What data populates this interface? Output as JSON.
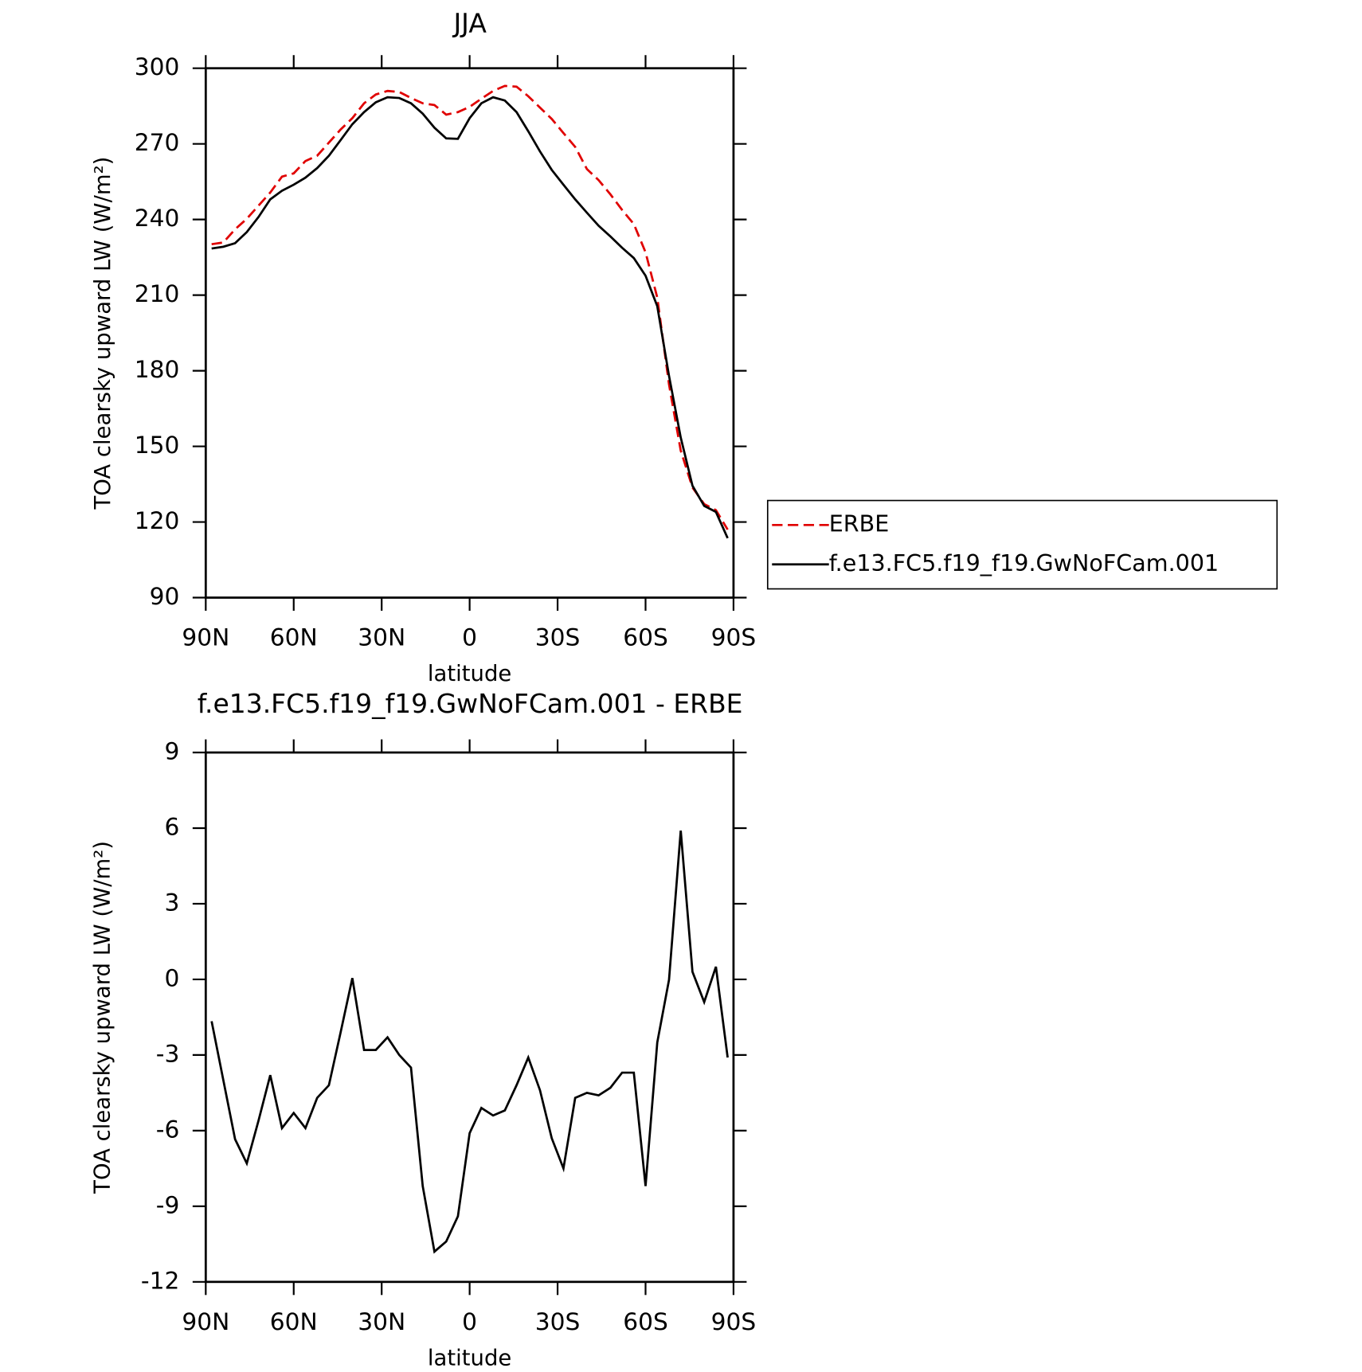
{
  "chart_data": [
    {
      "type": "line",
      "title": "JJA",
      "xlabel": "latitude",
      "ylabel": "TOA clearsky upward LW (W/m²)",
      "x": [
        88,
        84,
        80,
        76,
        72,
        68,
        64,
        60,
        56,
        52,
        48,
        44,
        40,
        36,
        32,
        28,
        24,
        20,
        16,
        12,
        8,
        4,
        0,
        -4,
        -8,
        -12,
        -16,
        -20,
        -24,
        -28,
        -32,
        -36,
        -40,
        -44,
        -48,
        -52,
        -56,
        -60,
        -64,
        -68,
        -72,
        -76,
        -80,
        -84,
        -88
      ],
      "series": [
        {
          "name": "ERBE",
          "color": "#e00000",
          "dash": true,
          "values": [
            230.2,
            230.9,
            236.1,
            240.3,
            245.5,
            250.7,
            257,
            258.3,
            263.2,
            265.3,
            270.5,
            275.7,
            280.2,
            286.1,
            289.6,
            291,
            290.6,
            288.2,
            286.1,
            285.4,
            281.6,
            282.6,
            284.7,
            287.9,
            291,
            293,
            292.7,
            288.9,
            284.4,
            279.9,
            274.3,
            268.8,
            260,
            255.6,
            250,
            243.8,
            238.2,
            227,
            209,
            174.6,
            148.3,
            133.7,
            127.1,
            124.7,
            117
          ]
        },
        {
          "name": "f.e13.FC5.f19_f19.GwNoFCam.001",
          "color": "#000000",
          "dash": false,
          "values": [
            228.5,
            229.2,
            230.6,
            235,
            241,
            248,
            251.4,
            253.8,
            256.6,
            260.4,
            265.3,
            271.5,
            277.8,
            282.6,
            286.5,
            288.5,
            288.2,
            286.1,
            282,
            276.4,
            272.2,
            272,
            280.2,
            286.1,
            288.5,
            287.2,
            282.6,
            275,
            267,
            259.7,
            253.8,
            248,
            242.7,
            237.5,
            233.3,
            228.8,
            224.7,
            217.7,
            205.6,
            178,
            153.5,
            134.4,
            126.4,
            124,
            113.6
          ]
        }
      ],
      "xlim": [
        90,
        -90
      ],
      "xticks": [
        {
          "value": 90,
          "label": "90N"
        },
        {
          "value": 60,
          "label": "60N"
        },
        {
          "value": 30,
          "label": "30N"
        },
        0,
        {
          "value": -30,
          "label": "30S"
        },
        {
          "value": -60,
          "label": "60S"
        },
        {
          "value": -90,
          "label": "90S"
        }
      ],
      "ylim": [
        90,
        300
      ],
      "yticks": [
        90,
        120,
        150,
        180,
        210,
        240,
        270,
        300
      ],
      "legend": "right"
    },
    {
      "type": "line",
      "title": "f.e13.FC5.f19_f19.GwNoFCam.001 - ERBE",
      "xlabel": "latitude",
      "ylabel": "TOA clearsky upward LW (W/m²)",
      "x": [
        88,
        84,
        80,
        76,
        72,
        68,
        64,
        60,
        56,
        52,
        48,
        44,
        40,
        36,
        32,
        28,
        24,
        20,
        16,
        12,
        8,
        4,
        0,
        -4,
        -8,
        -12,
        -16,
        -20,
        -24,
        -28,
        -32,
        -36,
        -40,
        -44,
        -48,
        -52,
        -56,
        -60,
        -64,
        -68,
        -72,
        -76,
        -80,
        -84,
        -88
      ],
      "series": [
        {
          "name": "f.e13.FC5.f19_f19.GwNoFCam.001 - ERBE",
          "color": "#000000",
          "dash": false,
          "values": [
            -1.66,
            -4,
            -6.34,
            -7.3,
            -5.6,
            -3.8,
            -5.9,
            -5.3,
            -5.9,
            -4.7,
            -4.2,
            -2.1,
            0.05,
            -2.8,
            -2.8,
            -2.3,
            -3,
            -3.5,
            -8.2,
            -10.8,
            -10.4,
            -9.4,
            -6.1,
            -5.1,
            -5.4,
            -5.2,
            -4.2,
            -3.1,
            -4.4,
            -6.3,
            -7.5,
            -4.7,
            -4.5,
            -4.6,
            -4.3,
            -3.7,
            -3.7,
            -8.2,
            -2.5,
            -0.02,
            5.9,
            0.3,
            -0.9,
            0.5,
            -3.1
          ]
        }
      ],
      "xlim": [
        90,
        -90
      ],
      "xticks": [
        {
          "value": 90,
          "label": "90N"
        },
        {
          "value": 60,
          "label": "60N"
        },
        {
          "value": 30,
          "label": "30N"
        },
        0,
        {
          "value": -30,
          "label": "30S"
        },
        {
          "value": -60,
          "label": "60S"
        },
        {
          "value": -90,
          "label": "90S"
        }
      ],
      "ylim": [
        -12,
        9
      ],
      "yticks": [
        -12,
        -9,
        -6,
        -3,
        0,
        3,
        6,
        9
      ]
    }
  ]
}
